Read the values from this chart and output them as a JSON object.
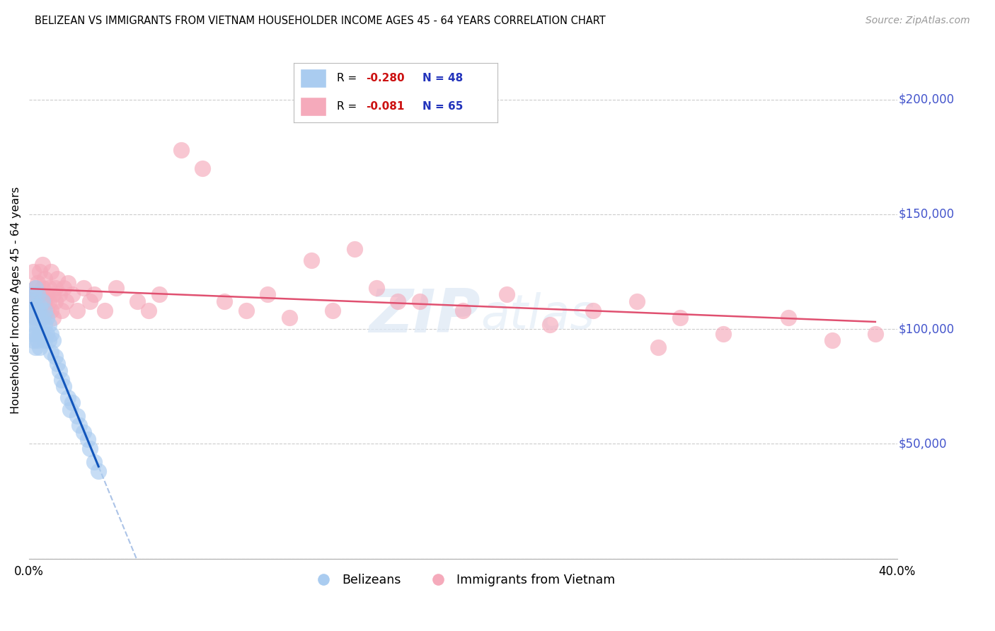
{
  "title": "BELIZEAN VS IMMIGRANTS FROM VIETNAM HOUSEHOLDER INCOME AGES 45 - 64 YEARS CORRELATION CHART",
  "source": "Source: ZipAtlas.com",
  "ylabel": "Householder Income Ages 45 - 64 years",
  "xlim": [
    0.0,
    0.4
  ],
  "ylim": [
    0,
    225000
  ],
  "yticks": [
    0,
    50000,
    100000,
    150000,
    200000
  ],
  "xticks": [
    0.0,
    0.05,
    0.1,
    0.15,
    0.2,
    0.25,
    0.3,
    0.35,
    0.4
  ],
  "belizean_color": "#aaccf0",
  "vietnam_color": "#f5aabb",
  "trend_belizean_color": "#1155bb",
  "trend_vietnam_color": "#e05070",
  "right_label_color": "#4455cc",
  "watermark": "ZIPAtlas",
  "r_color": "#cc1111",
  "n_color": "#2233bb",
  "belizean_R": "-0.280",
  "belizean_N": "48",
  "vietnam_R": "-0.081",
  "vietnam_N": "65",
  "belizean_x": [
    0.001,
    0.001,
    0.001,
    0.002,
    0.002,
    0.002,
    0.002,
    0.003,
    0.003,
    0.003,
    0.003,
    0.003,
    0.004,
    0.004,
    0.004,
    0.004,
    0.005,
    0.005,
    0.005,
    0.005,
    0.006,
    0.006,
    0.006,
    0.007,
    0.007,
    0.007,
    0.008,
    0.008,
    0.009,
    0.009,
    0.01,
    0.01,
    0.011,
    0.012,
    0.013,
    0.014,
    0.015,
    0.016,
    0.018,
    0.019,
    0.02,
    0.022,
    0.023,
    0.025,
    0.027,
    0.028,
    0.03,
    0.032
  ],
  "belizean_y": [
    105000,
    112000,
    98000,
    115000,
    108000,
    102000,
    95000,
    110000,
    105000,
    98000,
    118000,
    92000,
    108000,
    102000,
    115000,
    95000,
    110000,
    105000,
    98000,
    92000,
    112000,
    105000,
    98000,
    108000,
    102000,
    95000,
    105000,
    98000,
    102000,
    95000,
    98000,
    90000,
    95000,
    88000,
    85000,
    82000,
    78000,
    75000,
    70000,
    65000,
    68000,
    62000,
    58000,
    55000,
    52000,
    48000,
    42000,
    38000
  ],
  "vietnam_x": [
    0.001,
    0.001,
    0.002,
    0.002,
    0.003,
    0.003,
    0.004,
    0.004,
    0.005,
    0.005,
    0.005,
    0.006,
    0.006,
    0.006,
    0.007,
    0.007,
    0.008,
    0.008,
    0.009,
    0.009,
    0.01,
    0.01,
    0.011,
    0.011,
    0.012,
    0.012,
    0.013,
    0.014,
    0.015,
    0.016,
    0.017,
    0.018,
    0.02,
    0.022,
    0.025,
    0.028,
    0.03,
    0.035,
    0.04,
    0.05,
    0.055,
    0.06,
    0.07,
    0.08,
    0.09,
    0.1,
    0.11,
    0.12,
    0.14,
    0.16,
    0.18,
    0.2,
    0.22,
    0.24,
    0.26,
    0.28,
    0.3,
    0.32,
    0.35,
    0.37,
    0.39,
    0.15,
    0.13,
    0.17,
    0.29
  ],
  "vietnam_y": [
    115000,
    108000,
    125000,
    112000,
    118000,
    105000,
    120000,
    108000,
    115000,
    125000,
    108000,
    118000,
    105000,
    128000,
    112000,
    122000,
    115000,
    108000,
    118000,
    112000,
    125000,
    108000,
    115000,
    105000,
    118000,
    112000,
    122000,
    115000,
    108000,
    118000,
    112000,
    120000,
    115000,
    108000,
    118000,
    112000,
    115000,
    108000,
    118000,
    112000,
    108000,
    115000,
    178000,
    170000,
    112000,
    108000,
    115000,
    105000,
    108000,
    118000,
    112000,
    108000,
    115000,
    102000,
    108000,
    112000,
    105000,
    98000,
    105000,
    95000,
    98000,
    135000,
    130000,
    112000,
    92000
  ]
}
